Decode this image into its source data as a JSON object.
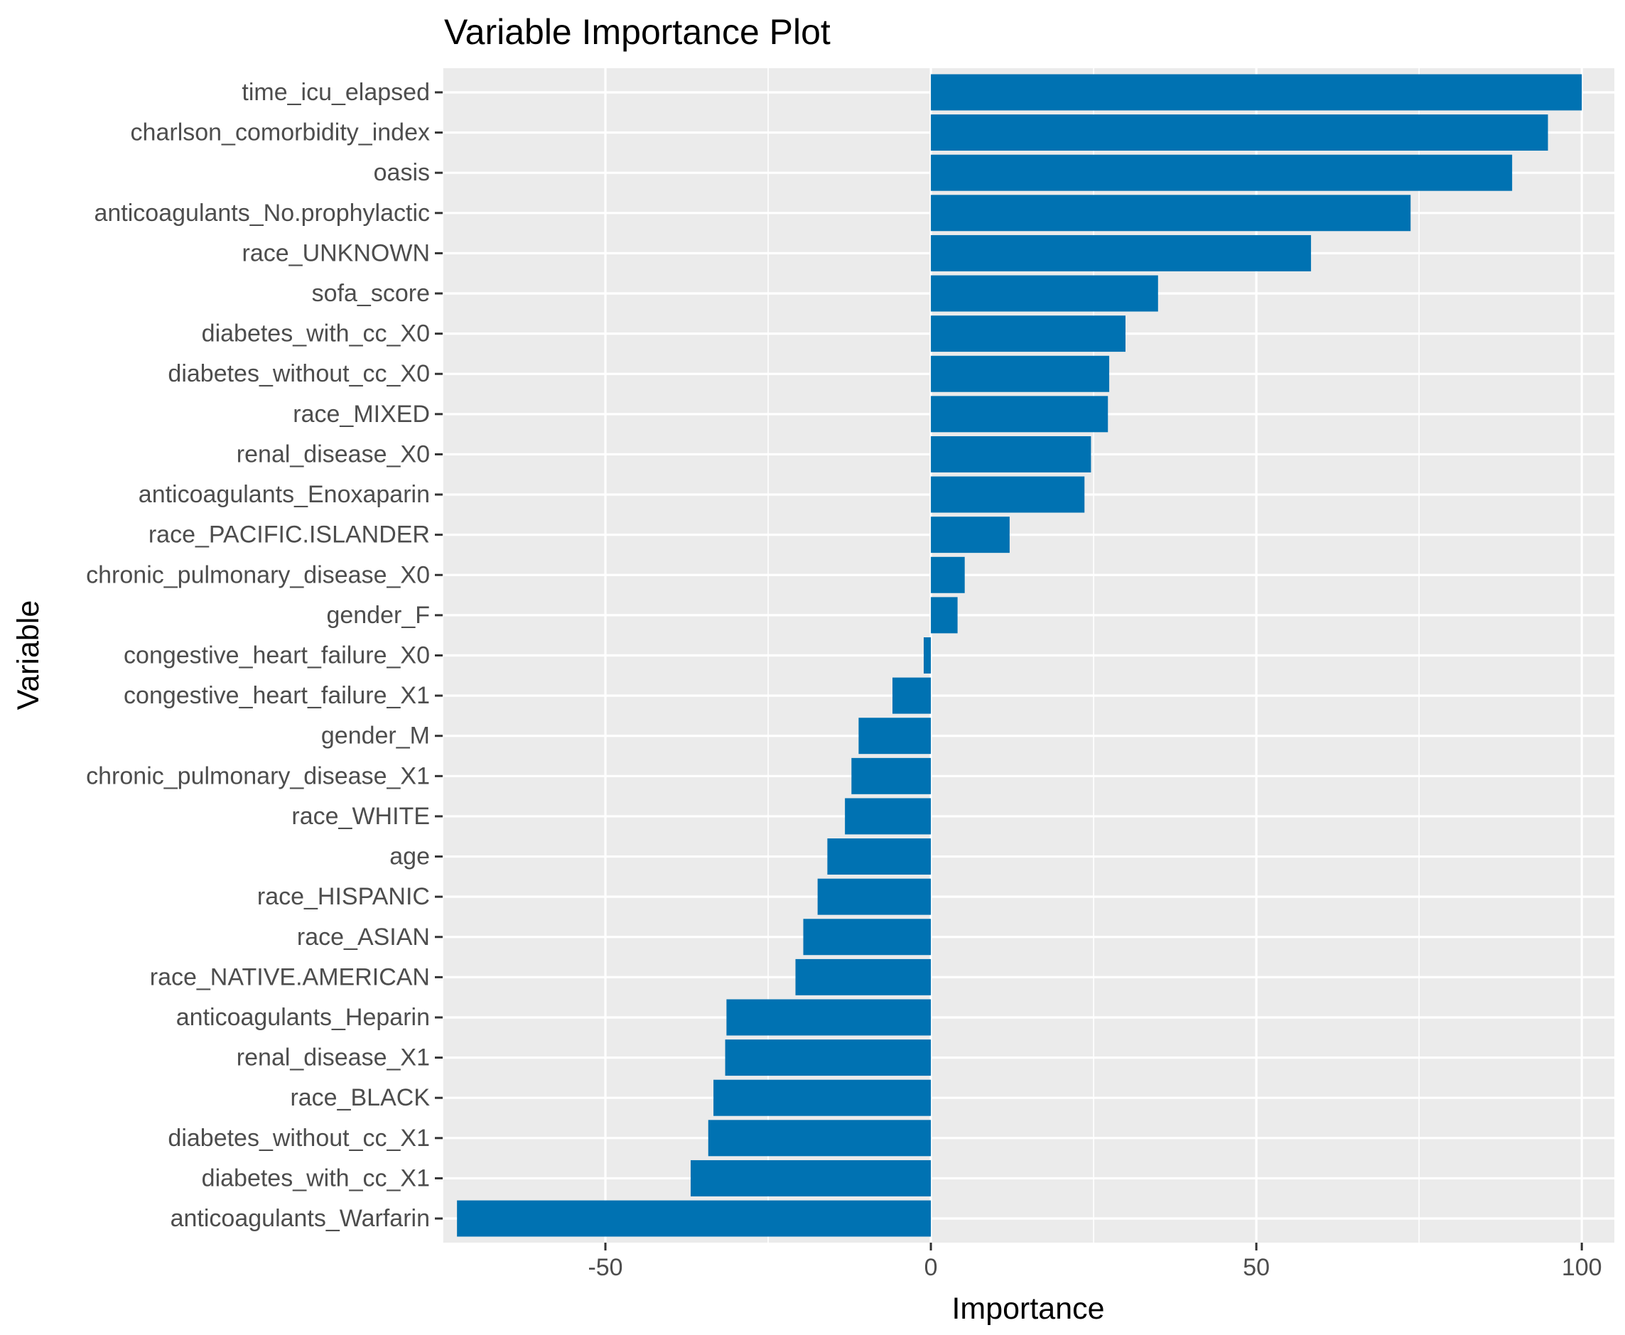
{
  "chart_data": {
    "type": "bar",
    "orientation": "horizontal",
    "title": "Variable Importance Plot",
    "xlabel": "Importance",
    "ylabel": "Variable",
    "xlim": [
      -75,
      105
    ],
    "xticks": [
      -50,
      0,
      50,
      100
    ],
    "grid": true,
    "legend": "none",
    "bar_color": "#0072B2",
    "panel_color": "#EBEBEB",
    "categories": [
      "time_icu_elapsed",
      "charlson_comorbidity_index",
      "oasis",
      "anticoagulants_No.prophylactic",
      "race_UNKNOWN",
      "sofa_score",
      "diabetes_with_cc_X0",
      "diabetes_without_cc_X0",
      "race_MIXED",
      "renal_disease_X0",
      "anticoagulants_Enoxaparin",
      "race_PACIFIC.ISLANDER",
      "chronic_pulmonary_disease_X0",
      "gender_F",
      "congestive_heart_failure_X0",
      "congestive_heart_failure_X1",
      "gender_M",
      "chronic_pulmonary_disease_X1",
      "race_WHITE",
      "age",
      "race_HISPANIC",
      "race_ASIAN",
      "race_NATIVE.AMERICAN",
      "anticoagulants_Heparin",
      "renal_disease_X1",
      "race_BLACK",
      "diabetes_without_cc_X1",
      "diabetes_with_cc_X1",
      "anticoagulants_Warfarin"
    ],
    "values": [
      100,
      94.8,
      89.3,
      73.7,
      58.4,
      34.9,
      29.9,
      27.4,
      27.2,
      24.6,
      23.6,
      12.1,
      5.2,
      4.1,
      -1.1,
      -5.9,
      -11.1,
      -12.2,
      -13.2,
      -15.9,
      -17.4,
      -19.6,
      -20.8,
      -31.4,
      -31.6,
      -33.4,
      -34.2,
      -36.9,
      -72.8
    ]
  }
}
